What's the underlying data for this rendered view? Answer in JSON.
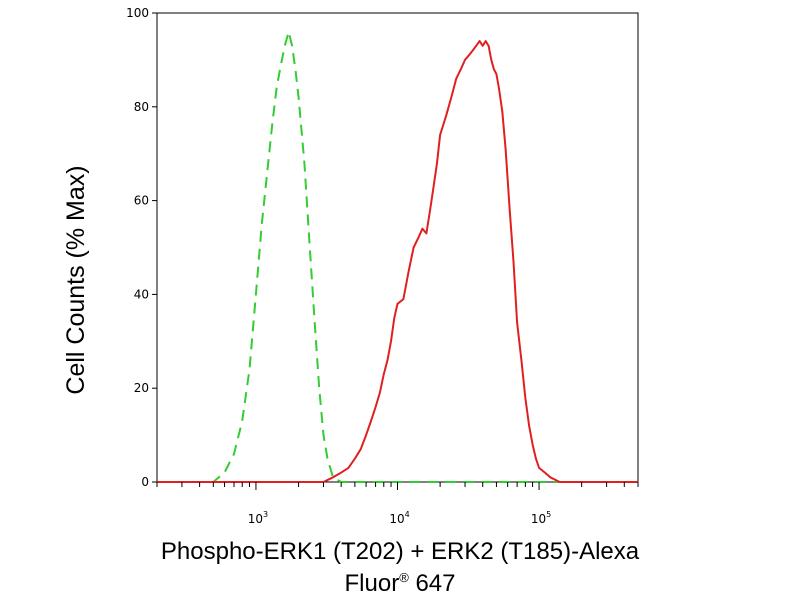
{
  "chart_data": {
    "type": "line",
    "xscale": "log",
    "xlim": [
      200,
      500000
    ],
    "ylim": [
      0,
      100
    ],
    "ylabel": "Cell Counts (% Max)",
    "xlabel_line1": "Phospho-ERK1 (T202) + ERK2 (T185)-Alexa",
    "xlabel_line2_prefix": "Fluor",
    "xlabel_line2_sup": "®",
    "xlabel_line2_suffix": " 647",
    "y_ticks": [
      0,
      20,
      40,
      60,
      80,
      100
    ],
    "x_ticks": [
      {
        "value": 1000,
        "base": "10",
        "exp": "3"
      },
      {
        "value": 10000,
        "base": "10",
        "exp": "4"
      },
      {
        "value": 100000,
        "base": "10",
        "exp": "5"
      }
    ],
    "grid": false,
    "series": [
      {
        "color": "#33cc33",
        "style": "dashed",
        "x": [
          200,
          500,
          600,
          700,
          800,
          900,
          1000,
          1100,
          1200,
          1300,
          1400,
          1500,
          1600,
          1700,
          1800,
          1900,
          2000,
          2200,
          2400,
          2600,
          2800,
          3000,
          3200,
          3500,
          4000,
          5000,
          10000,
          50000,
          200000,
          500000
        ],
        "y": [
          0,
          0,
          2,
          6,
          13,
          24,
          40,
          55,
          66,
          76,
          84,
          89,
          93,
          96,
          93,
          88,
          82,
          68,
          50,
          34,
          20,
          10,
          5,
          1,
          0,
          0,
          0,
          0,
          0,
          0
        ]
      },
      {
        "color": "#e02020",
        "style": "solid",
        "x": [
          200,
          2000,
          3000,
          3500,
          4000,
          4500,
          5000,
          5500,
          6000,
          6500,
          7000,
          7500,
          8000,
          8500,
          9000,
          9500,
          10000,
          11000,
          12000,
          13000,
          14000,
          15000,
          16000,
          17000,
          18000,
          19000,
          20000,
          22000,
          24000,
          26000,
          28000,
          30000,
          32000,
          34000,
          36000,
          38000,
          40000,
          42000,
          44000,
          46000,
          48000,
          50000,
          52000,
          55000,
          58000,
          62000,
          66000,
          70000,
          75000,
          80000,
          85000,
          90000,
          95000,
          100000,
          110000,
          120000,
          140000,
          170000,
          500000
        ],
        "y": [
          0,
          0,
          0,
          1,
          2,
          3,
          5,
          7,
          10,
          13,
          16,
          19,
          23,
          26,
          30,
          35,
          38,
          39,
          45,
          50,
          52,
          54,
          53,
          58,
          63,
          68,
          74,
          78,
          82,
          86,
          88,
          90,
          91,
          92,
          93,
          94,
          93,
          94,
          93,
          90,
          88,
          87,
          84,
          79,
          71,
          58,
          47,
          34,
          26,
          18,
          12,
          8,
          5,
          3,
          2,
          1,
          0,
          0,
          0
        ]
      }
    ]
  }
}
